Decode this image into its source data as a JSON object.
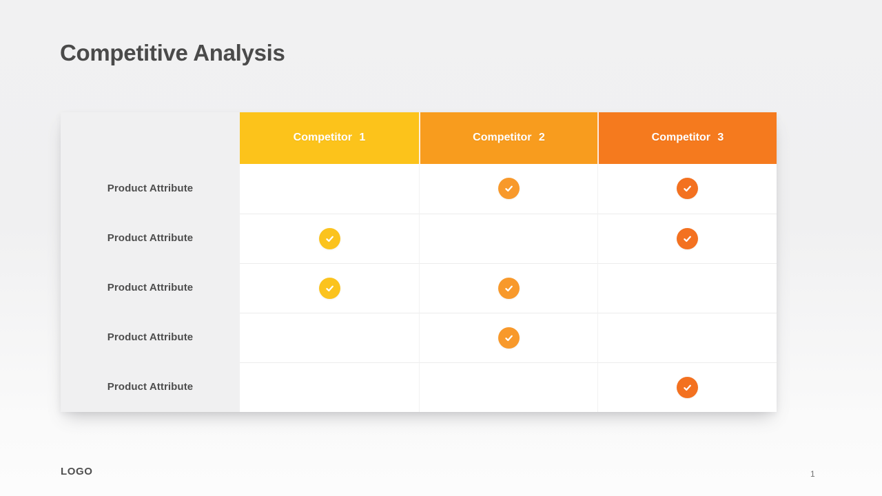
{
  "slide": {
    "title": "Competitive Analysis",
    "footer_logo": "LOGO",
    "page_number": "1"
  },
  "table": {
    "columns": [
      {
        "label": "Competitor 1",
        "header_color": "#FCC31B",
        "check_color": "#FBC31E"
      },
      {
        "label": "Competitor 2",
        "header_color": "#F89C1E",
        "check_color": "#F8992B"
      },
      {
        "label": "Competitor 3",
        "header_color": "#F57A1E",
        "check_color": "#F37120"
      }
    ],
    "rows": [
      {
        "label": "Product Attribute",
        "checks": [
          false,
          true,
          true
        ]
      },
      {
        "label": "Product Attribute",
        "checks": [
          true,
          false,
          true
        ]
      },
      {
        "label": "Product Attribute",
        "checks": [
          true,
          true,
          false
        ]
      },
      {
        "label": "Product Attribute",
        "checks": [
          false,
          true,
          false
        ]
      },
      {
        "label": "Product Attribute",
        "checks": [
          false,
          false,
          true
        ]
      }
    ],
    "check_icon": "checkmark-icon",
    "colors": {
      "label_column_bg": "#F0F0F1",
      "row_divider": "#ECECEC",
      "column_divider": "#F2F2F2",
      "title_text": "#4A4A4A",
      "label_text": "#4D4D4D",
      "header_text": "#FFFFFF"
    }
  }
}
